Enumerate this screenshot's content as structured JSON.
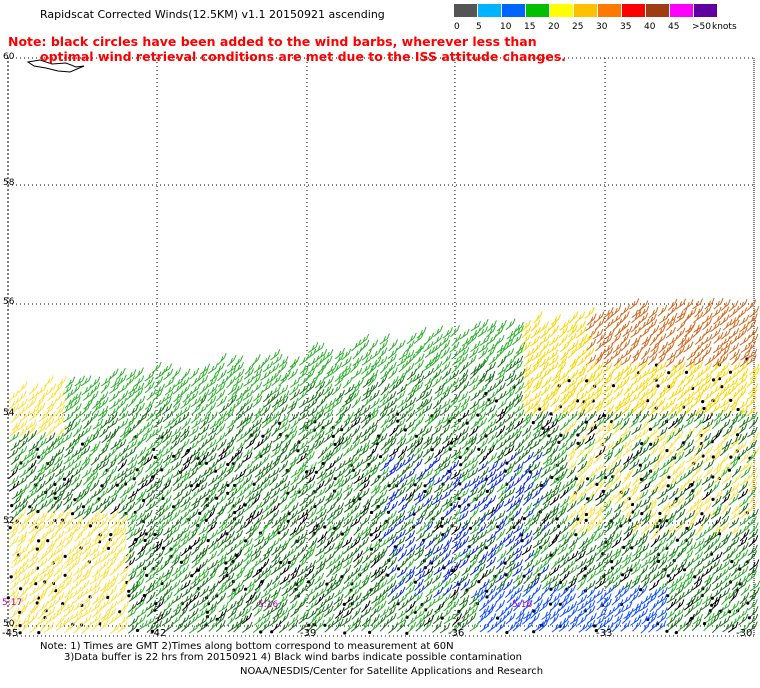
{
  "header": {
    "title": "Rapidscat Corrected Winds(12.5KM) v1.1 20150921 ascending"
  },
  "legend": {
    "unit": "knots",
    "labels": [
      "0",
      "5",
      "10",
      "15",
      "20",
      "25",
      "30",
      "35",
      "40",
      "45",
      ">50"
    ],
    "colors": [
      "#555555",
      "#00b4ff",
      "#0064ff",
      "#00c000",
      "#ffff00",
      "#ffc000",
      "#ff7800",
      "#ff0000",
      "#a03c14",
      "#ff00ff",
      "#6000a0"
    ]
  },
  "note": {
    "line1": "Note: black circles have been added to the wind barbs, wherever less than",
    "line2": "optimal wind retrieval conditions are met due to the ISS attitude changes."
  },
  "map": {
    "lat_labels": [
      "60",
      "58",
      "56",
      "54",
      "52",
      "50"
    ],
    "lon_labels": [
      "-45",
      "-42",
      "-39",
      "-36",
      "-33",
      "-30"
    ],
    "time_labels": [
      {
        "text": "5:17"
      },
      {
        "text": "5:16"
      },
      {
        "text": "5:16"
      }
    ]
  },
  "footer": {
    "line1": "Note: 1) Times are GMT 2)Times along bottom correspond to measurement at 60N",
    "line2": "3)Data buffer is 22 hrs from 20150921 4) Black wind barbs indicate possible contamination",
    "line3": "NOAA/NESDIS/Center for Satellite Applications and Research"
  }
}
